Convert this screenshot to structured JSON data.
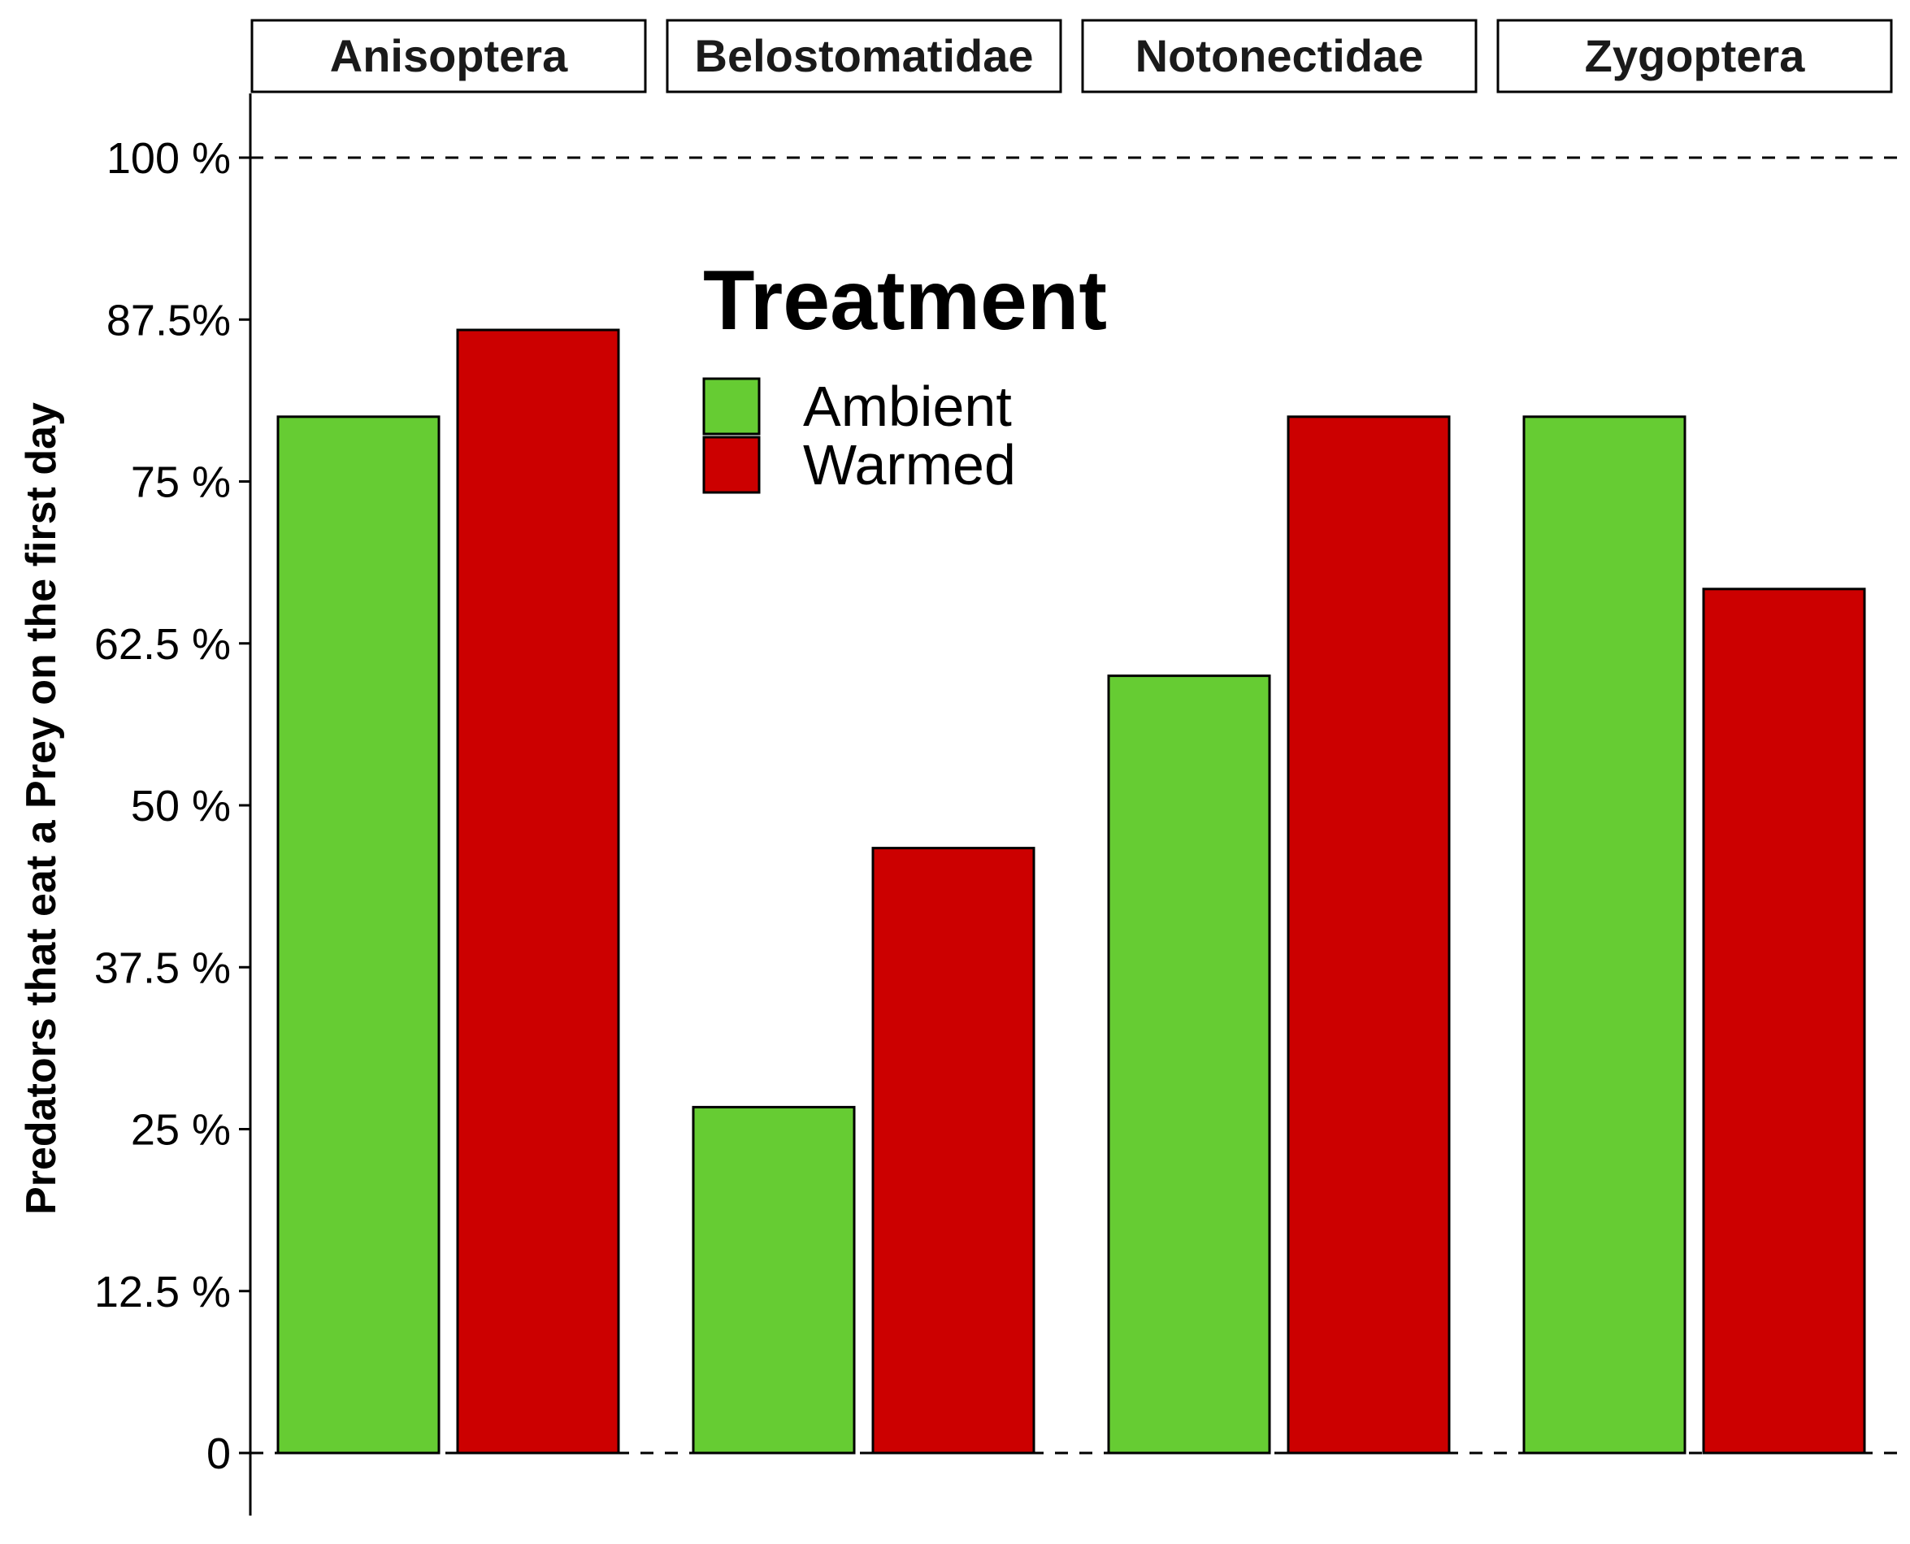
{
  "chart_data": {
    "type": "bar",
    "ylabel": "Predators that eat a Prey on the first day",
    "ylim": [
      0,
      100
    ],
    "yticks": [
      0,
      12.5,
      25,
      37.5,
      50,
      62.5,
      75,
      87.5,
      100
    ],
    "ytick_labels": [
      "0",
      "12.5 %",
      "25 %",
      "37.5 %",
      "50 %",
      "62.5 %",
      "75 %",
      "87.5%",
      "100 %"
    ],
    "reference_lines": [
      0,
      100
    ],
    "facets": [
      "Anisoptera",
      "Belostomatidae",
      "Notonectidae",
      "Zygoptera"
    ],
    "legend": {
      "title": "Treatment",
      "position": "top-center"
    },
    "series": [
      {
        "name": "Ambient",
        "color": "#66CC33",
        "values": [
          80,
          26.7,
          60,
          80
        ]
      },
      {
        "name": "Warmed",
        "color": "#CC0000",
        "values": [
          86.7,
          46.7,
          80,
          66.7
        ]
      }
    ]
  }
}
